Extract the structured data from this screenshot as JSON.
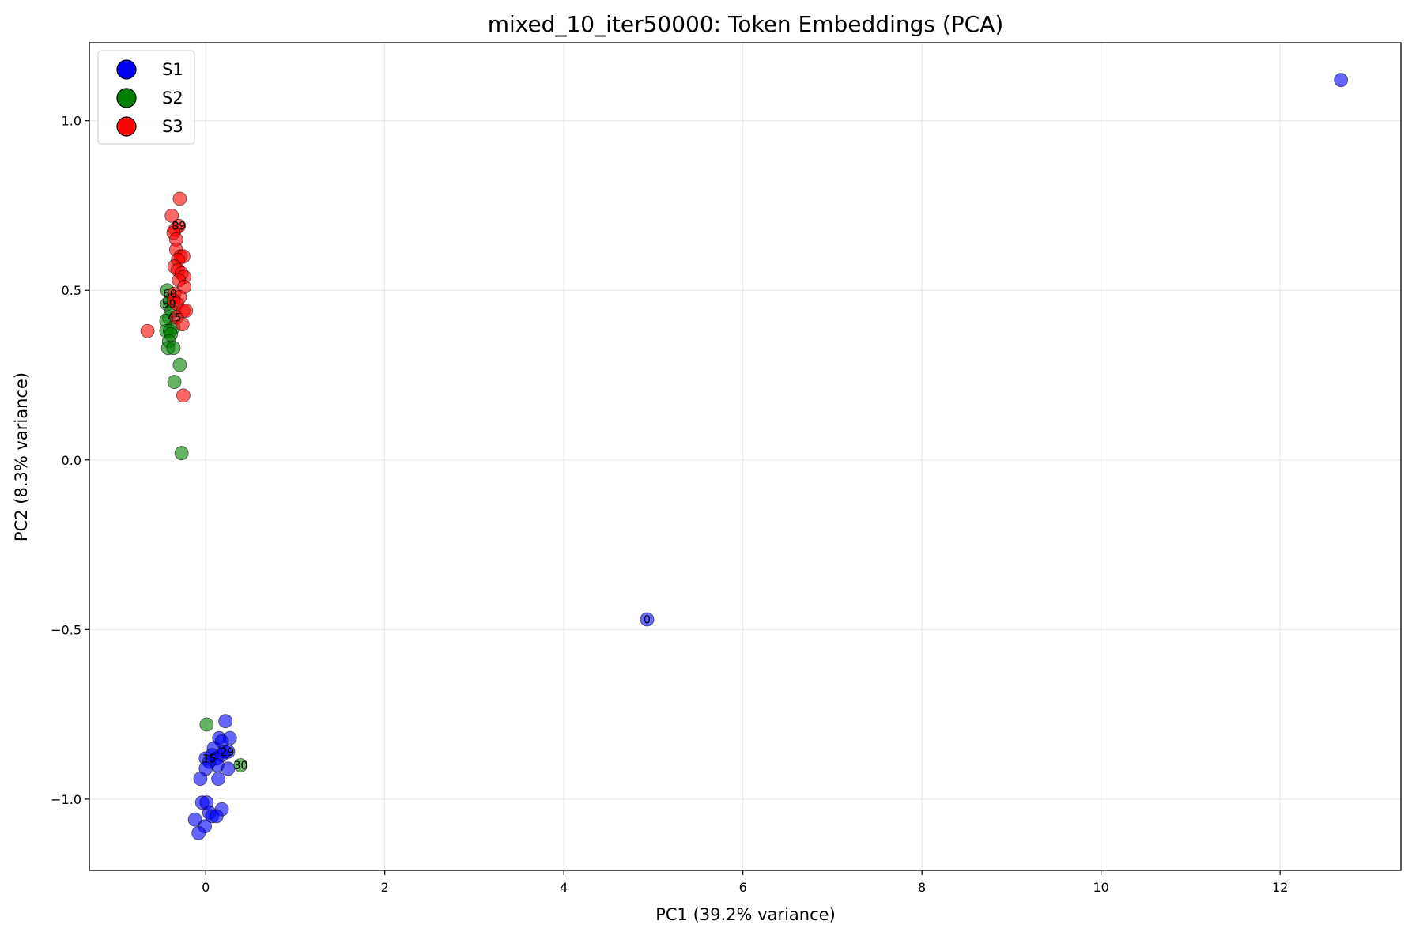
{
  "chart_data": {
    "type": "scatter",
    "title": "mixed_10_iter50000: Token Embeddings (PCA)",
    "xlabel": "PC1 (39.2% variance)",
    "ylabel": "PC2 (8.3% variance)",
    "xlim": [
      -1.3,
      13.35
    ],
    "ylim": [
      -1.21,
      1.23
    ],
    "xticks": [
      0,
      2,
      4,
      6,
      8,
      10,
      12
    ],
    "xtick_labels": [
      "0",
      "2",
      "4",
      "6",
      "8",
      "10",
      "12"
    ],
    "yticks": [
      -1.0,
      -0.5,
      0.0,
      0.5,
      1.0
    ],
    "ytick_labels": [
      "−1.0",
      "−0.5",
      "0.0",
      "0.5",
      "1.0"
    ],
    "grid": true,
    "legend_position": "top-left",
    "series": [
      {
        "name": "S1",
        "color": "#0000ff",
        "points": [
          [
            12.68,
            1.12
          ],
          [
            4.93,
            -0.47
          ],
          [
            0.22,
            -0.77
          ],
          [
            0.15,
            -0.82
          ],
          [
            0.27,
            -0.82
          ],
          [
            0.18,
            -0.83
          ],
          [
            0.09,
            -0.85
          ],
          [
            0.21,
            -0.86
          ],
          [
            0.25,
            -0.86
          ],
          [
            0.07,
            -0.87
          ],
          [
            0.18,
            -0.87
          ],
          [
            0.0,
            -0.88
          ],
          [
            0.12,
            -0.88
          ],
          [
            0.04,
            -0.89
          ],
          [
            0.13,
            -0.9
          ],
          [
            0.25,
            -0.91
          ],
          [
            0.0,
            -0.91
          ],
          [
            -0.06,
            -0.94
          ],
          [
            0.14,
            -0.94
          ],
          [
            -0.04,
            -1.01
          ],
          [
            0.01,
            -1.01
          ],
          [
            0.18,
            -1.03
          ],
          [
            0.04,
            -1.04
          ],
          [
            0.07,
            -1.05
          ],
          [
            0.12,
            -1.05
          ],
          [
            -0.12,
            -1.06
          ],
          [
            -0.01,
            -1.08
          ],
          [
            -0.08,
            -1.1
          ]
        ],
        "labels": [
          {
            "text": "0",
            "at": [
              4.93,
              -0.47
            ]
          },
          {
            "text": "29",
            "at": [
              0.24,
              -0.86
            ]
          },
          {
            "text": "15",
            "at": [
              0.04,
              -0.88
            ]
          }
        ]
      },
      {
        "name": "S2",
        "color": "#008000",
        "points": [
          [
            -0.43,
            0.5
          ],
          [
            -0.4,
            0.47
          ],
          [
            -0.43,
            0.46
          ],
          [
            -0.38,
            0.44
          ],
          [
            -0.41,
            0.42
          ],
          [
            -0.44,
            0.41
          ],
          [
            -0.36,
            0.39
          ],
          [
            -0.44,
            0.38
          ],
          [
            -0.4,
            0.38
          ],
          [
            -0.39,
            0.37
          ],
          [
            -0.41,
            0.35
          ],
          [
            -0.42,
            0.33
          ],
          [
            -0.36,
            0.33
          ],
          [
            -0.29,
            0.28
          ],
          [
            -0.35,
            0.23
          ],
          [
            -0.27,
            0.02
          ],
          [
            0.01,
            -0.78
          ],
          [
            0.39,
            -0.9
          ]
        ],
        "labels": [
          {
            "text": "30",
            "at": [
              0.39,
              -0.9
            ]
          },
          {
            "text": "59",
            "at": [
              -0.41,
              0.46
            ]
          }
        ]
      },
      {
        "name": "S3",
        "color": "#ff0000",
        "points": [
          [
            -0.29,
            0.77
          ],
          [
            -0.38,
            0.72
          ],
          [
            -0.3,
            0.69
          ],
          [
            -0.34,
            0.68
          ],
          [
            -0.36,
            0.67
          ],
          [
            -0.33,
            0.65
          ],
          [
            -0.33,
            0.62
          ],
          [
            -0.28,
            0.6
          ],
          [
            -0.25,
            0.6
          ],
          [
            -0.31,
            0.59
          ],
          [
            -0.35,
            0.57
          ],
          [
            -0.31,
            0.56
          ],
          [
            -0.27,
            0.55
          ],
          [
            -0.24,
            0.54
          ],
          [
            -0.3,
            0.53
          ],
          [
            -0.24,
            0.51
          ],
          [
            -0.35,
            0.49
          ],
          [
            -0.29,
            0.48
          ],
          [
            -0.36,
            0.47
          ],
          [
            -0.32,
            0.46
          ],
          [
            -0.25,
            0.44
          ],
          [
            -0.22,
            0.44
          ],
          [
            -0.33,
            0.42
          ],
          [
            -0.26,
            0.4
          ],
          [
            -0.65,
            0.38
          ],
          [
            -0.25,
            0.19
          ]
        ],
        "labels": [
          {
            "text": "89",
            "at": [
              -0.3,
              0.69
            ]
          },
          {
            "text": "60",
            "at": [
              -0.4,
              0.49
            ]
          },
          {
            "text": "45",
            "at": [
              -0.35,
              0.42
            ]
          }
        ]
      }
    ]
  }
}
